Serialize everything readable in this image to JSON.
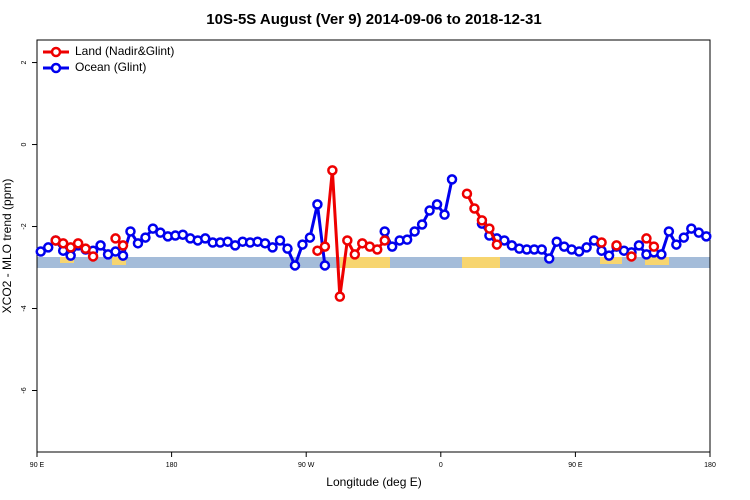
{
  "chart_data": {
    "type": "line",
    "title": "10S-5S August (Ver 9)   2014-09-06 to 2018-12-31",
    "x_label": "Longitude (deg E)",
    "y_label": "XCO2 - MLO trend (ppm)",
    "xlim": [
      90,
      540
    ],
    "ylim": [
      -7.5,
      2.55
    ],
    "xticks": [
      {
        "value": 90,
        "label": "90 E"
      },
      {
        "value": 180,
        "label": "180"
      },
      {
        "value": 270,
        "label": "90 W"
      },
      {
        "value": 360,
        "label": "0"
      },
      {
        "value": 450,
        "label": "90 E"
      },
      {
        "value": 540,
        "label": "180"
      }
    ],
    "yticks": [
      2,
      0,
      -2,
      -4,
      -6
    ],
    "grid": false,
    "legend": "top-left",
    "x": [
      92.5,
      97.5,
      102.5,
      107.5,
      112.5,
      117.5,
      122.5,
      127.5,
      132.5,
      137.5,
      142.5,
      147.5,
      152.5,
      157.5,
      162.5,
      167.5,
      172.5,
      177.5,
      182.5,
      187.5,
      192.5,
      197.5,
      202.5,
      207.5,
      212.5,
      217.5,
      222.5,
      227.5,
      232.5,
      237.5,
      242.5,
      247.5,
      252.5,
      257.5,
      262.5,
      267.5,
      272.5,
      277.5,
      282.5,
      287.5,
      292.5,
      297.5,
      302.5,
      307.5,
      312.5,
      317.5,
      322.5,
      327.5,
      332.5,
      337.5,
      342.5,
      347.5,
      352.5,
      357.5,
      362.5,
      367.5,
      372.5,
      377.5,
      382.5,
      387.5,
      392.5,
      397.5,
      402.5,
      407.5,
      412.5,
      417.5,
      422.5,
      427.5,
      432.5,
      437.5,
      442.5,
      447.5,
      452.5,
      457.5,
      462.5,
      467.5,
      472.5,
      477.5,
      482.5,
      487.5,
      492.5,
      497.5,
      502.5,
      507.5,
      512.5,
      517.5,
      522.5,
      527.5,
      532.5,
      537.5
    ],
    "series": [
      {
        "name": "Ocean (Glint)",
        "color": "#0000ee",
        "values": [
          -2.61,
          -2.51,
          -2.34,
          -2.59,
          -2.71,
          -2.46,
          -2.56,
          -2.59,
          -2.46,
          -2.68,
          -2.61,
          -2.71,
          -2.12,
          -2.41,
          -2.27,
          -2.05,
          -2.15,
          -2.24,
          -2.22,
          -2.2,
          -2.29,
          -2.34,
          -2.29,
          -2.39,
          -2.39,
          -2.37,
          -2.46,
          -2.37,
          -2.39,
          -2.37,
          -2.41,
          -2.51,
          -2.34,
          -2.54,
          -2.95,
          -2.44,
          -2.27,
          -1.46,
          -2.95,
          null,
          null,
          null,
          null,
          null,
          null,
          null,
          -2.12,
          -2.49,
          -2.34,
          -2.32,
          -2.12,
          -1.95,
          -1.61,
          -1.46,
          -1.71,
          -0.85,
          null,
          null,
          null,
          -1.93,
          -2.22,
          -2.29,
          -2.34,
          -2.46,
          -2.54,
          -2.56,
          -2.56,
          -2.56,
          -2.78,
          -2.37,
          -2.49,
          -2.56,
          -2.61,
          -2.51,
          -2.34,
          -2.59,
          -2.71,
          -2.49,
          -2.59,
          -2.63,
          -2.46,
          -2.68,
          -2.63,
          -2.68,
          -2.12,
          -2.44,
          -2.27,
          -2.05,
          -2.15,
          -2.24
        ]
      },
      {
        "name": "Land (Nadir&Glint)",
        "color": "#ee0000",
        "values": [
          null,
          null,
          -2.34,
          -2.41,
          -2.51,
          -2.41,
          -2.54,
          -2.73,
          null,
          null,
          -2.29,
          -2.46,
          null,
          null,
          null,
          null,
          null,
          null,
          null,
          null,
          null,
          null,
          null,
          null,
          null,
          null,
          null,
          null,
          null,
          null,
          null,
          null,
          null,
          null,
          null,
          null,
          null,
          -2.59,
          -2.49,
          -0.63,
          -3.71,
          -2.34,
          -2.68,
          -2.41,
          -2.49,
          -2.56,
          -2.34,
          null,
          null,
          null,
          null,
          null,
          null,
          null,
          null,
          null,
          null,
          -1.2,
          -1.56,
          -1.85,
          -2.05,
          -2.44,
          null,
          null,
          null,
          null,
          null,
          null,
          null,
          null,
          null,
          null,
          null,
          null,
          null,
          -2.39,
          null,
          -2.46,
          null,
          -2.73,
          null,
          -2.29,
          -2.49,
          null,
          null,
          null,
          null,
          null,
          null,
          null
        ]
      }
    ]
  }
}
